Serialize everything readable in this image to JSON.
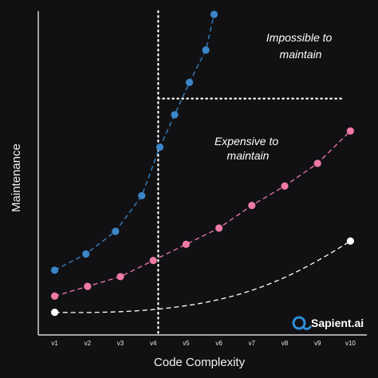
{
  "chart_data": {
    "type": "line",
    "title": "",
    "xlabel": "Code Complexity",
    "ylabel": "Maintenance",
    "categories": [
      "v1",
      "v2",
      "v3",
      "v4",
      "v5",
      "v6",
      "v7",
      "v8",
      "v9",
      "v10"
    ],
    "xlim": [
      0.5,
      10.5
    ],
    "ylim": [
      0,
      100
    ],
    "grid": false,
    "series": [
      {
        "color": "#3a86c8",
        "x": [
          1,
          1.95,
          2.85,
          3.65,
          4.2,
          4.65,
          5.1,
          5.6,
          5.85
        ],
        "y": [
          20,
          25,
          32,
          43,
          58,
          68,
          78,
          88,
          99
        ]
      },
      {
        "color": "#ee7aa3",
        "x": [
          1,
          2,
          3,
          4,
          5,
          6,
          7,
          8,
          9,
          10
        ],
        "y": [
          12,
          15,
          18,
          23,
          28,
          33,
          40,
          46,
          53,
          63
        ]
      },
      {
        "color": "#ffffff",
        "x": [
          1,
          10
        ],
        "y": [
          7,
          29
        ]
      }
    ],
    "threshold_x": 4.15,
    "threshold_y": 73,
    "annotations": [
      {
        "lines": [
          "Impossible to",
          "maintain"
        ]
      },
      {
        "lines": [
          "Expensive to",
          "maintain"
        ]
      }
    ],
    "logo": "Sapient.ai",
    "colors": {
      "background": "#111114",
      "axis": "#ffffff",
      "threshold": "#ffffff",
      "logo_accent": "#2f8fd8"
    }
  }
}
